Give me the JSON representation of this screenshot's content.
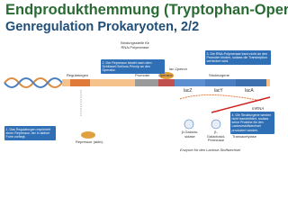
{
  "header": {
    "title": "Endprodukthemmung (Tryptophan-Operon)",
    "subtitle": "Genregulation Prokaryoten, 2/2"
  },
  "labels": {
    "binding_site": "Bindungsstelle für RNA-Polymerase",
    "operon": "lac-Operon",
    "regulator_gene": "Regulatorgen",
    "promoter": "Promoter",
    "operator": "Operator",
    "structural_genes": "Strukturgene",
    "genes": [
      "lacZ",
      "lacY",
      "lacA"
    ],
    "mrna": "mRNA",
    "repressor": "Repressor (aktiv)",
    "enzymes": [
      "β-Galacto-sidase",
      "β-Galactosid-Permease",
      "β-Galactosid-Transacetylase"
    ],
    "enzymes_caption": "Enzyme für den Lactose-Stoffwechsel"
  },
  "callouts": [
    "1. Das Regulatorgen exprimiert einen Repressor, der in aktiver Form vorliegt.",
    "2. Der Repressor bindet nach dem Schlüssel-Schloss-Prinzip an den Operator.",
    "3. Die RNA-Polymerase kann nicht an den Promoter binden, sodass die Transkription verhindert wird.",
    "4. Die Strukturgene werden nicht transkribiert, sodass keine Proteine für den Lactosestoffwechsel produziert werden."
  ]
}
